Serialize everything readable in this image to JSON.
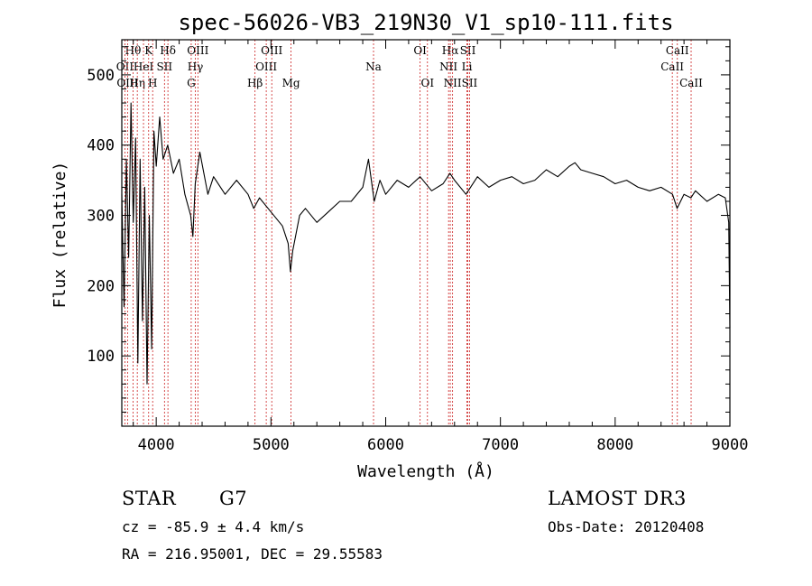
{
  "chart_data": {
    "type": "line",
    "title": "spec-56026-VB3_219N30_V1_sp10-111.fits",
    "xlabel": "Wavelength (Å)",
    "ylabel": "Flux (relative)",
    "xlim": [
      3700,
      9000
    ],
    "ylim": [
      0,
      550
    ],
    "x_ticks": [
      4000,
      5000,
      6000,
      7000,
      8000,
      9000
    ],
    "y_ticks": [
      100,
      200,
      300,
      400,
      500
    ],
    "x_tick_labels": [
      "4000",
      "5000",
      "6000",
      "7000",
      "8000",
      "9000"
    ],
    "y_tick_labels": [
      "100",
      "200",
      "300",
      "400",
      "500"
    ],
    "series": [
      {
        "name": "spectrum",
        "x": [
          3700,
          3720,
          3740,
          3760,
          3780,
          3800,
          3820,
          3840,
          3860,
          3880,
          3900,
          3920,
          3940,
          3960,
          3980,
          4000,
          4030,
          4060,
          4100,
          4150,
          4200,
          4250,
          4300,
          4320,
          4340,
          4380,
          4450,
          4500,
          4600,
          4700,
          4800,
          4850,
          4900,
          5000,
          5100,
          5150,
          5170,
          5190,
          5250,
          5300,
          5400,
          5500,
          5600,
          5700,
          5800,
          5850,
          5900,
          5950,
          6000,
          6100,
          6200,
          6300,
          6400,
          6500,
          6560,
          6600,
          6700,
          6800,
          6900,
          7000,
          7100,
          7200,
          7300,
          7400,
          7500,
          7600,
          7650,
          7700,
          7800,
          7900,
          8000,
          8100,
          8200,
          8300,
          8400,
          8500,
          8540,
          8600,
          8660,
          8700,
          8800,
          8900,
          8960,
          8990,
          9000
        ],
        "y": [
          330,
          170,
          380,
          240,
          460,
          290,
          410,
          90,
          380,
          150,
          340,
          60,
          300,
          110,
          420,
          370,
          440,
          380,
          400,
          360,
          380,
          330,
          300,
          270,
          345,
          390,
          330,
          355,
          330,
          350,
          330,
          310,
          325,
          305,
          285,
          260,
          220,
          250,
          300,
          310,
          290,
          305,
          320,
          320,
          340,
          380,
          320,
          350,
          330,
          350,
          340,
          355,
          335,
          345,
          360,
          350,
          330,
          355,
          340,
          350,
          355,
          345,
          350,
          365,
          355,
          370,
          375,
          365,
          360,
          355,
          345,
          350,
          340,
          335,
          340,
          330,
          310,
          330,
          325,
          335,
          320,
          330,
          325,
          290,
          140
        ]
      }
    ],
    "spectral_lines": [
      {
        "label": "Hθ",
        "wavelength": 3798,
        "row": 0
      },
      {
        "label": "OII",
        "wavelength": 3727,
        "row": 1
      },
      {
        "label": "OIII",
        "wavelength": 3750,
        "row": 2
      },
      {
        "label": "Hη",
        "wavelength": 3835,
        "row": 2
      },
      {
        "label": "K",
        "wavelength": 3934,
        "row": 0
      },
      {
        "label": "HeI",
        "wavelength": 3889,
        "row": 1
      },
      {
        "label": "SII",
        "wavelength": 4072,
        "row": 1
      },
      {
        "label": "H",
        "wavelength": 3969,
        "row": 2
      },
      {
        "label": "Hδ",
        "wavelength": 4102,
        "row": 0
      },
      {
        "label": "OIII",
        "wavelength": 4363,
        "row": 0
      },
      {
        "label": "Hγ",
        "wavelength": 4341,
        "row": 1
      },
      {
        "label": "G",
        "wavelength": 4305,
        "row": 2
      },
      {
        "label": "Hβ",
        "wavelength": 4861,
        "row": 2
      },
      {
        "label": "OIII",
        "wavelength": 5007,
        "row": 0
      },
      {
        "label": "OIII",
        "wavelength": 4959,
        "row": 1
      },
      {
        "label": "Mg",
        "wavelength": 5175,
        "row": 2
      },
      {
        "label": "Na",
        "wavelength": 5894,
        "row": 1
      },
      {
        "label": "OI",
        "wavelength": 6300,
        "row": 0
      },
      {
        "label": "OI",
        "wavelength": 6364,
        "row": 2
      },
      {
        "label": "Hα",
        "wavelength": 6563,
        "row": 0
      },
      {
        "label": "NII",
        "wavelength": 6548,
        "row": 1
      },
      {
        "label": "NII",
        "wavelength": 6583,
        "row": 2
      },
      {
        "label": "SII",
        "wavelength": 6716,
        "row": 0
      },
      {
        "label": "Li",
        "wavelength": 6708,
        "row": 1
      },
      {
        "label": "SII",
        "wavelength": 6731,
        "row": 2
      },
      {
        "label": "CaII",
        "wavelength": 8542,
        "row": 0
      },
      {
        "label": "CaII",
        "wavelength": 8498,
        "row": 1
      },
      {
        "label": "CaII",
        "wavelength": 8662,
        "row": 2
      }
    ]
  },
  "info": {
    "class_label": "STAR",
    "subclass_label": "G7",
    "survey": "LAMOST DR3",
    "cz": "cz = -85.9 ± 4.4 km/s",
    "obs_date": "Obs-Date: 20120408",
    "coords": "RA = 216.95001, DEC =  29.55583"
  }
}
